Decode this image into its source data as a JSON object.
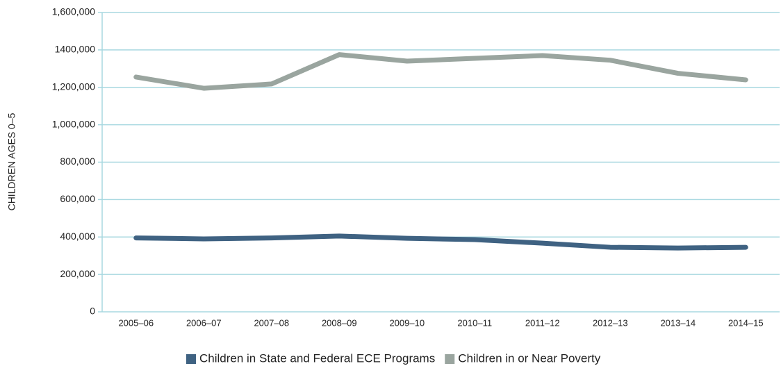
{
  "chart_data": {
    "type": "line",
    "y_label": "CHILDREN AGES 0–5",
    "categories": [
      "2005–06",
      "2006–07",
      "2007–08",
      "2008–09",
      "2009–10",
      "2010–11",
      "2011–12",
      "2012–13",
      "2013–14",
      "2014–15"
    ],
    "series": [
      {
        "name": "Children in State and Federal ECE Programs",
        "color": "#3f6282",
        "values": [
          395000,
          390000,
          395000,
          405000,
          393000,
          386000,
          367000,
          345000,
          341000,
          345000
        ]
      },
      {
        "name": "Children in or Near Poverty",
        "color": "#9aa59f",
        "values": [
          1255000,
          1195000,
          1218000,
          1375000,
          1340000,
          1355000,
          1370000,
          1345000,
          1275000,
          1240000
        ]
      }
    ],
    "ylim": [
      0,
      1600000
    ],
    "yticks": [
      0,
      {
        "value": 200000,
        "label": "200,000"
      },
      {
        "value": 400000,
        "label": "400,000"
      },
      {
        "value": 600000,
        "label": "600,000"
      },
      {
        "value": 800000,
        "label": "800,000"
      },
      {
        "value": 1000000,
        "label": "1,000,000"
      },
      {
        "value": 1200000,
        "label": "1,200,000"
      },
      {
        "value": 1400000,
        "label": "1400,000"
      },
      {
        "value": 1600000,
        "label": "1,600,000"
      }
    ],
    "grid": true,
    "legend": "bottom"
  }
}
